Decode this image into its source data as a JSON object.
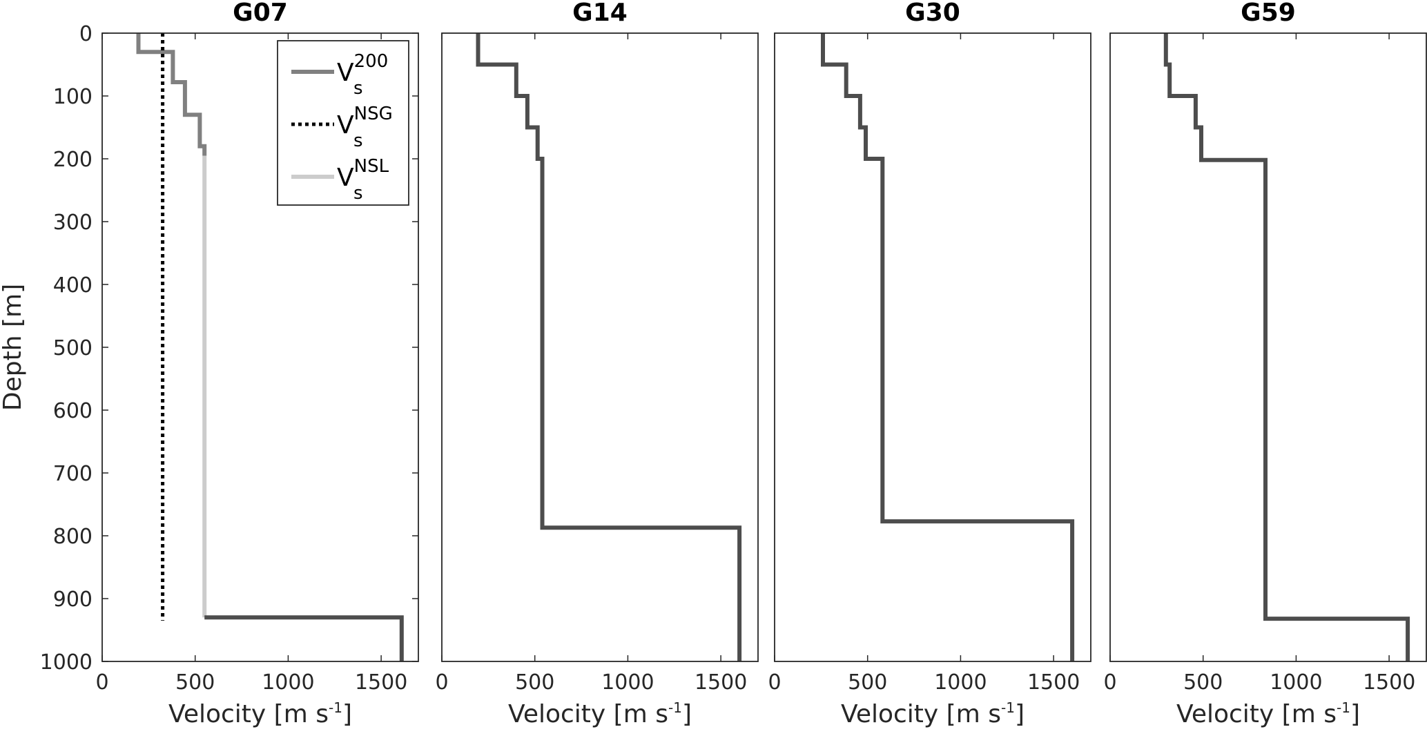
{
  "chart_data": [
    {
      "type": "line",
      "title": "G07",
      "xlabel": "Velocity [m s-1]",
      "xlabel_base": "Velocity [m s",
      "xlabel_sup": "-1",
      "xlabel_tail": "]",
      "ylabel": "Depth [m]",
      "xlim": [
        0,
        1700
      ],
      "ylim": [
        0,
        1000
      ],
      "y_reversed": true,
      "xticks": [
        0,
        500,
        1000,
        1500
      ],
      "yticks": [
        0,
        100,
        200,
        300,
        400,
        500,
        600,
        700,
        800,
        900,
        1000
      ],
      "legend_position": "top-right",
      "legend": [
        {
          "base": "V",
          "sup": "200",
          "sub": "s",
          "series": "Vs200"
        },
        {
          "base": "V",
          "sup": "NSG",
          "sub": "s",
          "series": "VsNSG"
        },
        {
          "base": "V",
          "sup": "NSL",
          "sub": "s",
          "series": "VsNSL"
        }
      ],
      "series": [
        {
          "name": "Vs200",
          "color": "#808080",
          "style": "solid",
          "points": [
            [
              195,
              0
            ],
            [
              195,
              30
            ],
            [
              380,
              30
            ],
            [
              380,
              78
            ],
            [
              445,
              78
            ],
            [
              445,
              130
            ],
            [
              525,
              130
            ],
            [
              525,
              180
            ],
            [
              550,
              180
            ],
            [
              550,
              195
            ]
          ]
        },
        {
          "name": "VsNSG",
          "color": "#000000",
          "style": "dotted",
          "points": [
            [
              325,
              0
            ],
            [
              325,
              935
            ]
          ]
        },
        {
          "name": "VsNSL",
          "color": "#cccccc",
          "style": "solid",
          "points": [
            [
              550,
              195
            ],
            [
              550,
              930
            ]
          ]
        },
        {
          "name": "",
          "color": "#4d4d4d",
          "style": "solid",
          "points": [
            [
              550,
              930
            ],
            [
              1610,
              930
            ],
            [
              1610,
              1000
            ]
          ]
        }
      ]
    },
    {
      "type": "line",
      "title": "G14",
      "xlabel": "Velocity [m s-1]",
      "xlabel_base": "Velocity [m s",
      "xlabel_sup": "-1",
      "xlabel_tail": "]",
      "xlim": [
        0,
        1700
      ],
      "ylim": [
        0,
        1000
      ],
      "y_reversed": true,
      "xticks": [
        0,
        500,
        1000,
        1500
      ],
      "series": [
        {
          "name": "",
          "color": "#4d4d4d",
          "style": "solid",
          "points": [
            [
              195,
              0
            ],
            [
              195,
              50
            ],
            [
              400,
              50
            ],
            [
              400,
              100
            ],
            [
              460,
              100
            ],
            [
              460,
              150
            ],
            [
              515,
              150
            ],
            [
              515,
              200
            ],
            [
              540,
              200
            ],
            [
              540,
              787
            ],
            [
              1600,
              787
            ],
            [
              1600,
              1000
            ]
          ]
        }
      ]
    },
    {
      "type": "line",
      "title": "G30",
      "xlabel": "Velocity [m s-1]",
      "xlabel_base": "Velocity [m s",
      "xlabel_sup": "-1",
      "xlabel_tail": "]",
      "xlim": [
        0,
        1700
      ],
      "ylim": [
        0,
        1000
      ],
      "y_reversed": true,
      "xticks": [
        0,
        500,
        1000,
        1500
      ],
      "series": [
        {
          "name": "",
          "color": "#4d4d4d",
          "style": "solid",
          "points": [
            [
              260,
              0
            ],
            [
              260,
              50
            ],
            [
              385,
              50
            ],
            [
              385,
              100
            ],
            [
              460,
              100
            ],
            [
              460,
              150
            ],
            [
              490,
              150
            ],
            [
              490,
              200
            ],
            [
              580,
              200
            ],
            [
              580,
              777
            ],
            [
              1600,
              777
            ],
            [
              1600,
              1000
            ]
          ]
        }
      ]
    },
    {
      "type": "line",
      "title": "G59",
      "xlabel": "Velocity [m s-1]",
      "xlabel_base": "Velocity [m s",
      "xlabel_sup": "-1",
      "xlabel_tail": "]",
      "xlim": [
        0,
        1700
      ],
      "ylim": [
        0,
        1000
      ],
      "y_reversed": true,
      "xticks": [
        0,
        500,
        1000,
        1500
      ],
      "series": [
        {
          "name": "",
          "color": "#4d4d4d",
          "style": "solid",
          "points": [
            [
              300,
              0
            ],
            [
              300,
              50
            ],
            [
              320,
              50
            ],
            [
              320,
              100
            ],
            [
              460,
              100
            ],
            [
              460,
              150
            ],
            [
              490,
              150
            ],
            [
              490,
              202
            ],
            [
              835,
              202
            ],
            [
              835,
              932
            ],
            [
              1600,
              932
            ],
            [
              1600,
              1000
            ]
          ]
        }
      ]
    }
  ]
}
